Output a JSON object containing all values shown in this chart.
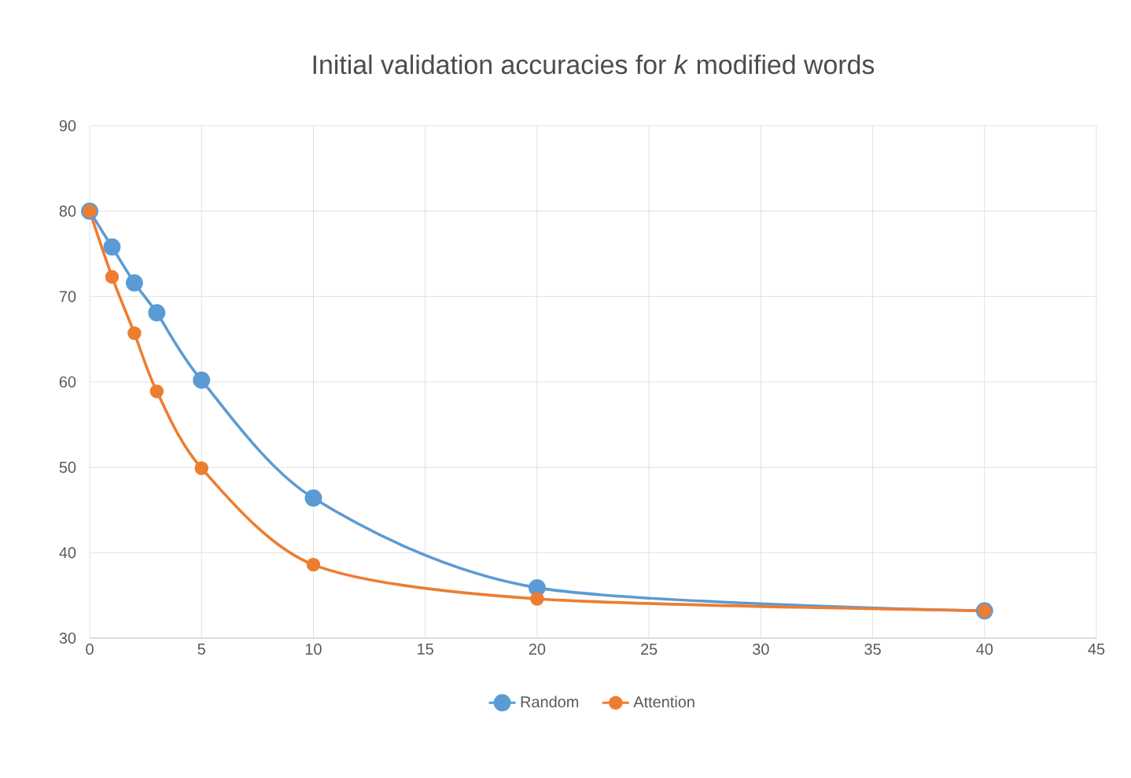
{
  "chart_data": {
    "type": "line",
    "title": "Initial validation accuracies for *k* modified words",
    "x": [
      0,
      1,
      2,
      3,
      5,
      10,
      20,
      40
    ],
    "series": [
      {
        "name": "Random",
        "color": "#5b9bd5",
        "values": [
          80,
          75.8,
          71.6,
          68.1,
          60.2,
          46.4,
          35.9,
          33.2
        ]
      },
      {
        "name": "Attention",
        "color": "#ed7d31",
        "values": [
          80,
          72.3,
          65.7,
          58.9,
          49.9,
          38.6,
          34.6,
          33.2
        ]
      }
    ],
    "xlim": [
      0,
      45
    ],
    "xticks": [
      0,
      5,
      10,
      15,
      20,
      25,
      30,
      35,
      40,
      45
    ],
    "ylim": [
      30,
      90
    ],
    "yticks": [
      30,
      40,
      50,
      60,
      70,
      80,
      90
    ],
    "grid": true,
    "legend": "bottom",
    "marker": "circle",
    "line_style": "solid"
  }
}
